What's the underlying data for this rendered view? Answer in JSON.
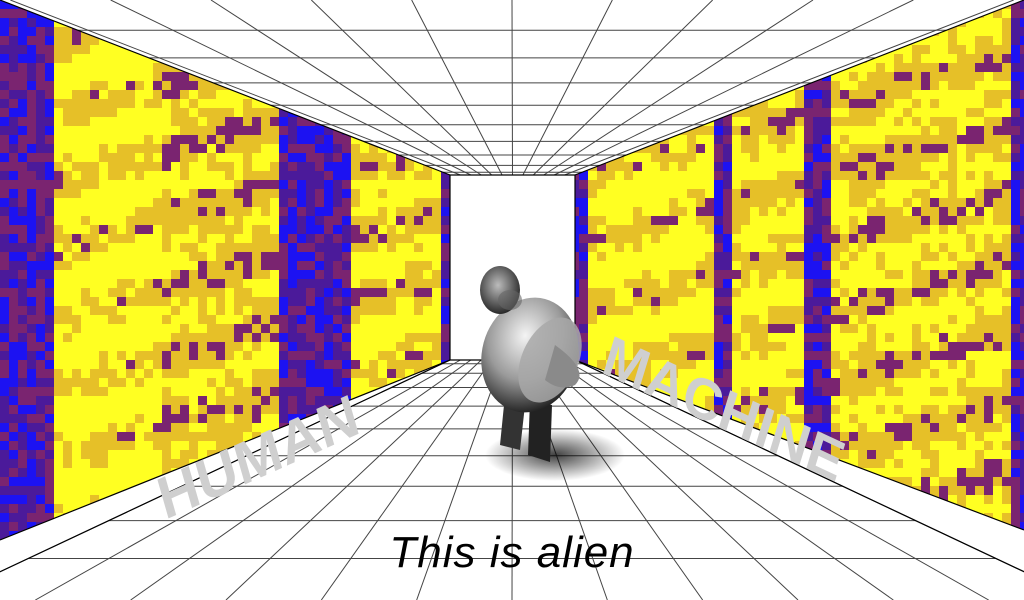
{
  "scene": {
    "caption": "This is alien",
    "left_wall_label": "HUMAN",
    "right_wall_label": "MACHINE",
    "figure": "hunched-creature"
  },
  "colors": {
    "spectrogram_low": "#1c12f2",
    "spectrogram_mid": "#7a2470",
    "spectrogram_high": "#ffff22",
    "grid_line": "#444444",
    "wall_text": "#cfcfcf",
    "background": "#ffffff"
  }
}
